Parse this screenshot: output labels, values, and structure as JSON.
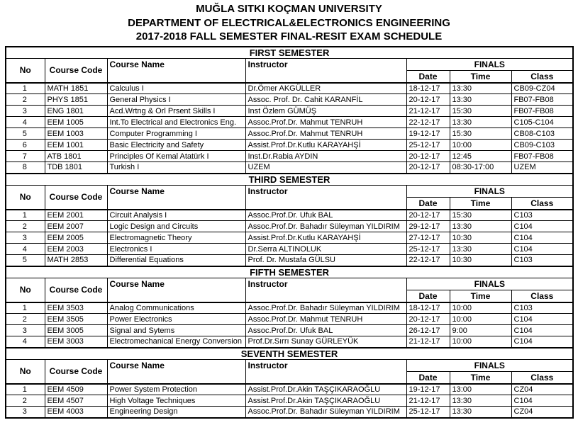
{
  "header": {
    "line1": "MUĞLA SITKI KOÇMAN UNIVERSITY",
    "line2": "DEPARTMENT OF ELECTRICAL&ELECTRONICS ENGINEERING",
    "line3": "2017-2018 FALL SEMESTER FINAL-RESIT EXAM SCHEDULE"
  },
  "columns": {
    "no": "No",
    "course_code": "Course Code",
    "course_name": "Course Name",
    "instructor": "Instructor",
    "finals": "FINALS",
    "date": "Date",
    "time": "Time",
    "class": "Class"
  },
  "sections": [
    {
      "title": "FIRST SEMESTER",
      "rows": [
        [
          "1",
          "MATH 1851",
          "Calculus I",
          "Dr.Ömer AKGÜLLER",
          "18-12-17",
          "13:30",
          "CB09-CZ04"
        ],
        [
          "2",
          "PHYS 1851",
          "General Physics I",
          "Assoc. Prof. Dr. Cahit KARANFİL",
          "20-12-17",
          "13:30",
          "FB07-FB08"
        ],
        [
          "3",
          "ENG 1801",
          "Acd.Wrtng & Orl Prsent Skills I",
          "Inst Özlem GÜMÜŞ",
          "21-12-17",
          "15:30",
          "FB07-FB08"
        ],
        [
          "4",
          "EEM 1005",
          "Int.To Electrical and Electronics Eng.",
          "Assoc.Prof.Dr. Mahmut TENRUH",
          "22-12-17",
          "13:30",
          "C105-C104"
        ],
        [
          "5",
          "EEM 1003",
          "Computer Programming I",
          "Assoc.Prof.Dr. Mahmut TENRUH",
          "19-12-17",
          "15:30",
          "CB08-C103"
        ],
        [
          "6",
          "EEM 1001",
          "Basic Electricity and Safety",
          "Assist.Prof.Dr.Kutlu KARAYAHŞİ",
          "25-12-17",
          "10:00",
          "CB09-C103"
        ],
        [
          "7",
          "ATB 1801",
          "Principles Of Kemal Atatürk I",
          "Inst.Dr.Rabia AYDIN",
          "20-12-17",
          "12:45",
          "FB07-FB08"
        ],
        [
          "8",
          "TDB 1801",
          "Turkish I",
          "UZEM",
          "20-12-17",
          "08:30-17:00",
          "UZEM"
        ]
      ]
    },
    {
      "title": "THIRD SEMESTER",
      "rows": [
        [
          "1",
          "EEM 2001",
          "Circuit Analysis I",
          "Assoc.Prof.Dr. Ufuk BAL",
          "20-12-17",
          "15:30",
          "C103"
        ],
        [
          "2",
          "EEM 2007",
          "Logic Design and Circuits",
          "Assoc.Prof.Dr. Bahadır Süleyman YILDIRIM",
          "29-12-17",
          "13:30",
          "C104"
        ],
        [
          "3",
          "EEM 2005",
          "Electromagnetic Theory",
          "Assist.Prof.Dr.Kutlu KARAYAHŞİ",
          "27-12-17",
          "10:30",
          "C104"
        ],
        [
          "4",
          "EEM 2003",
          "Electronics I",
          "Dr.Serra ALTINOLUK",
          "25-12-17",
          "13:30",
          "C104"
        ],
        [
          "5",
          "MATH 2853",
          "Differential Equations",
          "Prof. Dr. Mustafa GÜLSU",
          "22-12-17",
          "10:30",
          "C103"
        ]
      ]
    },
    {
      "title": "FIFTH SEMESTER",
      "rows": [
        [
          "1",
          "EEM 3503",
          "Analog Communications",
          "Assoc.Prof.Dr. Bahadır Süleyman YILDIRIM",
          "18-12-17",
          "10:00",
          "C103"
        ],
        [
          "2",
          "EEM 3505",
          "Power Electronics",
          "Assoc.Prof.Dr. Mahmut TENRUH",
          "20-12-17",
          "10:00",
          "C104"
        ],
        [
          "3",
          "EEM 3005",
          "Signal and Sytems",
          "Assoc.Prof.Dr. Ufuk BAL",
          "26-12-17",
          "9:00",
          "C104"
        ],
        [
          "4",
          "EEM 3003",
          "Electromechanical Energy Conversion",
          "Prof.Dr.Sırrı Sunay GÜRLEYÜK",
          "21-12-17",
          "10:00",
          "C104"
        ]
      ]
    },
    {
      "title": "SEVENTH SEMESTER",
      "rows": [
        [
          "1",
          "EEM 4509",
          "Power System Protection",
          "Assist.Prof.Dr.Akin TAŞÇIKARAOĞLU",
          "19-12-17",
          "13:00",
          "CZ04"
        ],
        [
          "2",
          "EEM 4507",
          "High Voltage Techniques",
          "Assist.Prof.Dr.Akin TAŞÇIKARAOĞLU",
          "21-12-17",
          "13:30",
          "C104"
        ],
        [
          "3",
          "EEM 4003",
          "Engineering Design",
          "Assoc.Prof.Dr. Bahadır Süleyman YILDIRIM",
          "25-12-17",
          "13:30",
          "CZ04"
        ]
      ]
    }
  ]
}
